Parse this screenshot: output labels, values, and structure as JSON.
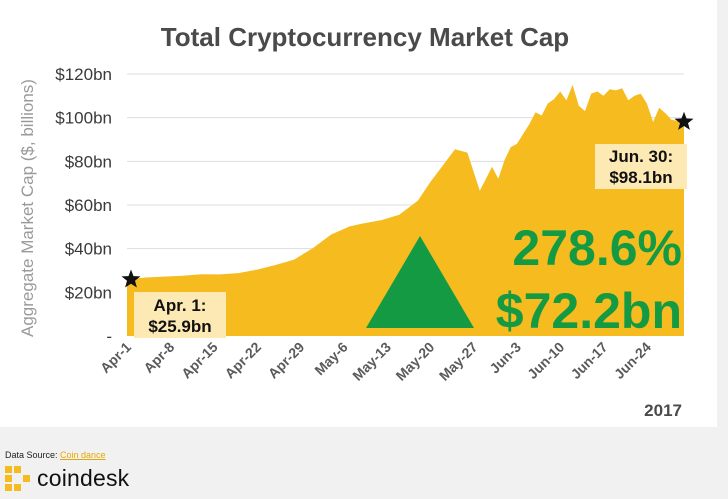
{
  "chart_data": {
    "type": "area",
    "title": "Total Cryptocurrency Market Cap",
    "xlabel": "",
    "ylabel": "Aggregate Market Cap ($, billions)",
    "year_label": "2017",
    "ylim": [
      0,
      120
    ],
    "y_ticks": [
      {
        "value": 0,
        "label": "-"
      },
      {
        "value": 20,
        "label": "$20bn"
      },
      {
        "value": 40,
        "label": "$40bn"
      },
      {
        "value": 60,
        "label": "$60bn"
      },
      {
        "value": 80,
        "label": "$80bn"
      },
      {
        "value": 100,
        "label": "$100bn"
      },
      {
        "value": 120,
        "label": "$120bn"
      }
    ],
    "x_tick_labels": [
      "Apr-1",
      "Apr-8",
      "Apr-15",
      "Apr-22",
      "Apr-29",
      "May-6",
      "May-13",
      "May-20",
      "May-27",
      "Jun-3",
      "Jun-10",
      "Jun-17",
      "Jun-24"
    ],
    "x_day_range": [
      0,
      90
    ],
    "colors": {
      "fill": "#f6bb1f",
      "accent": "#139a43",
      "marker": "#111111",
      "callout_bg": "#fde9b3"
    },
    "series": [
      {
        "name": "",
        "x": [
          0,
          3,
          6,
          9,
          12,
          15,
          18,
          21,
          24,
          27,
          30,
          33,
          36,
          38,
          41,
          44,
          47,
          49,
          51,
          53,
          55,
          57,
          59,
          60,
          61,
          62,
          63,
          64,
          65,
          66,
          67,
          68,
          69,
          70,
          71,
          72,
          73,
          74,
          75,
          76,
          77,
          78,
          79,
          80,
          81,
          82,
          83,
          84,
          85,
          86,
          87,
          88,
          89,
          90
        ],
        "values": [
          25.9,
          26.8,
          27.2,
          27.6,
          28.3,
          28.2,
          28.8,
          30.4,
          32.5,
          35.0,
          40.2,
          46.5,
          50.2,
          51.5,
          53.0,
          55.5,
          62.0,
          70.5,
          78.0,
          85.5,
          84.0,
          66.5,
          77.5,
          72.0,
          80.5,
          86.5,
          88.0,
          92.5,
          97.0,
          102.5,
          101.0,
          106.5,
          108.5,
          112.0,
          108.0,
          115.0,
          105.5,
          103.0,
          111.0,
          112.0,
          110.0,
          113.0,
          112.5,
          113.5,
          108.0,
          110.0,
          111.0,
          106.5,
          98.0,
          104.5,
          102.0,
          99.0,
          98.5,
          98.1
        ]
      }
    ],
    "annotations": [
      {
        "name": "start",
        "x": 0,
        "y": 25.9,
        "text_lines": [
          "Apr. 1:",
          "$25.9bn"
        ]
      },
      {
        "name": "end",
        "x": 90,
        "y": 98.1,
        "text_lines": [
          "Jun. 30:",
          "$98.1bn"
        ]
      }
    ],
    "change_percent": "278.6%",
    "change_value": "$72.2bn"
  },
  "footer": {
    "source_prefix": "Data Source: ",
    "source_link": "Coin dance",
    "brand": "coindesk"
  }
}
